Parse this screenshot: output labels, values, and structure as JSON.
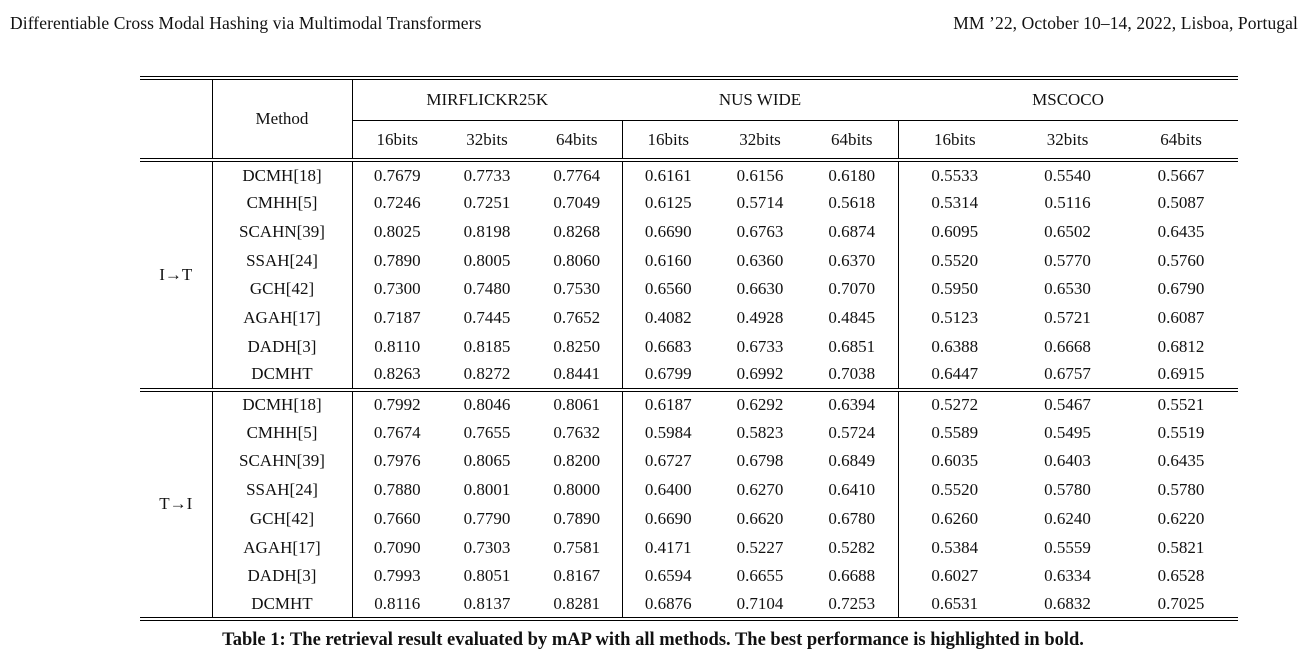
{
  "page_header": {
    "title_left": "Differentiable Cross Modal Hashing via Multimodal Transformers",
    "conference_right": "MM ’22, October 10–14, 2022, Lisboa, Portugal"
  },
  "table": {
    "caption": "Table 1: The retrieval result evaluated by mAP with all methods. The best performance is highlighted in bold.",
    "method_header": "Method",
    "datasets": [
      "MIRFLICKR25K",
      "NUS WIDE",
      "MSCOCO"
    ],
    "bits": [
      "16bits",
      "32bits",
      "64bits"
    ],
    "groups": [
      {
        "label": "I→T",
        "rows": [
          {
            "method": "DCMH[18]",
            "values": [
              "0.7679",
              "0.7733",
              "0.7764",
              "0.6161",
              "0.6156",
              "0.6180",
              "0.5533",
              "0.5540",
              "0.5667"
            ],
            "bold": [
              0,
              0,
              0,
              0,
              0,
              0,
              0,
              0,
              0
            ]
          },
          {
            "method": "CMHH[5]",
            "values": [
              "0.7246",
              "0.7251",
              "0.7049",
              "0.6125",
              "0.5714",
              "0.5618",
              "0.5314",
              "0.5116",
              "0.5087"
            ],
            "bold": [
              0,
              0,
              0,
              0,
              0,
              0,
              0,
              0,
              0
            ]
          },
          {
            "method": "SCAHN[39]",
            "values": [
              "0.8025",
              "0.8198",
              "0.8268",
              "0.6690",
              "0.6763",
              "0.6874",
              "0.6095",
              "0.6502",
              "0.6435"
            ],
            "bold": [
              0,
              0,
              0,
              0,
              0,
              0,
              0,
              0,
              0
            ]
          },
          {
            "method": "SSAH[24]",
            "values": [
              "0.7890",
              "0.8005",
              "0.8060",
              "0.6160",
              "0.6360",
              "0.6370",
              "0.5520",
              "0.5770",
              "0.5760"
            ],
            "bold": [
              0,
              0,
              0,
              0,
              0,
              0,
              0,
              0,
              0
            ]
          },
          {
            "method": "GCH[42]",
            "values": [
              "0.7300",
              "0.7480",
              "0.7530",
              "0.6560",
              "0.6630",
              "0.7070",
              "0.5950",
              "0.6530",
              "0.6790"
            ],
            "bold": [
              0,
              0,
              0,
              0,
              0,
              1,
              0,
              0,
              0
            ]
          },
          {
            "method": "AGAH[17]",
            "values": [
              "0.7187",
              "0.7445",
              "0.7652",
              "0.4082",
              "0.4928",
              "0.4845",
              "0.5123",
              "0.5721",
              "0.6087"
            ],
            "bold": [
              0,
              0,
              0,
              0,
              0,
              0,
              0,
              0,
              0
            ]
          },
          {
            "method": "DADH[3]",
            "values": [
              "0.8110",
              "0.8185",
              "0.8250",
              "0.6683",
              "0.6733",
              "0.6851",
              "0.6388",
              "0.6668",
              "0.6812"
            ],
            "bold": [
              0,
              0,
              0,
              0,
              0,
              0,
              0,
              0,
              0
            ]
          },
          {
            "method": "DCMHT",
            "values": [
              "0.8263",
              "0.8272",
              "0.8441",
              "0.6799",
              "0.6992",
              "0.7038",
              "0.6447",
              "0.6757",
              "0.6915"
            ],
            "bold": [
              1,
              1,
              1,
              1,
              1,
              0,
              1,
              1,
              1
            ]
          }
        ]
      },
      {
        "label": "T→I",
        "rows": [
          {
            "method": "DCMH[18]",
            "values": [
              "0.7992",
              "0.8046",
              "0.8061",
              "0.6187",
              "0.6292",
              "0.6394",
              "0.5272",
              "0.5467",
              "0.5521"
            ],
            "bold": [
              0,
              0,
              0,
              0,
              0,
              0,
              0,
              0,
              0
            ]
          },
          {
            "method": "CMHH[5]",
            "values": [
              "0.7674",
              "0.7655",
              "0.7632",
              "0.5984",
              "0.5823",
              "0.5724",
              "0.5589",
              "0.5495",
              "0.5519"
            ],
            "bold": [
              0,
              0,
              0,
              0,
              0,
              0,
              0,
              0,
              0
            ]
          },
          {
            "method": "SCAHN[39]",
            "values": [
              "0.7976",
              "0.8065",
              "0.8200",
              "0.6727",
              "0.6798",
              "0.6849",
              "0.6035",
              "0.6403",
              "0.6435"
            ],
            "bold": [
              0,
              0,
              0,
              0,
              0,
              0,
              0,
              0,
              0
            ]
          },
          {
            "method": "SSAH[24]",
            "values": [
              "0.7880",
              "0.8001",
              "0.8000",
              "0.6400",
              "0.6270",
              "0.6410",
              "0.5520",
              "0.5780",
              "0.5780"
            ],
            "bold": [
              0,
              0,
              0,
              0,
              0,
              0,
              0,
              0,
              0
            ]
          },
          {
            "method": "GCH[42]",
            "values": [
              "0.7660",
              "0.7790",
              "0.7890",
              "0.6690",
              "0.6620",
              "0.6780",
              "0.6260",
              "0.6240",
              "0.6220"
            ],
            "bold": [
              0,
              0,
              0,
              0,
              0,
              0,
              0,
              0,
              0
            ]
          },
          {
            "method": "AGAH[17]",
            "values": [
              "0.7090",
              "0.7303",
              "0.7581",
              "0.4171",
              "0.5227",
              "0.5282",
              "0.5384",
              "0.5559",
              "0.5821"
            ],
            "bold": [
              0,
              0,
              0,
              0,
              0,
              0,
              0,
              0,
              0
            ]
          },
          {
            "method": "DADH[3]",
            "values": [
              "0.7993",
              "0.8051",
              "0.8167",
              "0.6594",
              "0.6655",
              "0.6688",
              "0.6027",
              "0.6334",
              "0.6528"
            ],
            "bold": [
              0,
              0,
              0,
              0,
              0,
              0,
              0,
              0,
              0
            ]
          },
          {
            "method": "DCMHT",
            "values": [
              "0.8116",
              "0.8137",
              "0.8281",
              "0.6876",
              "0.7104",
              "0.7253",
              "0.6531",
              "0.6832",
              "0.7025"
            ],
            "bold": [
              1,
              1,
              1,
              1,
              1,
              1,
              1,
              1,
              1
            ]
          }
        ]
      }
    ]
  }
}
